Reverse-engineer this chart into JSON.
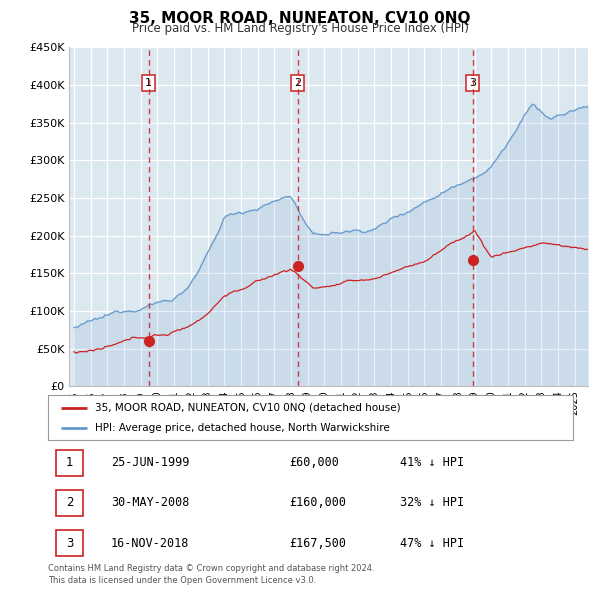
{
  "title": "35, MOOR ROAD, NUNEATON, CV10 0NQ",
  "subtitle": "Price paid vs. HM Land Registry's House Price Index (HPI)",
  "hpi_color": "#6699cc",
  "price_color": "#cc2222",
  "vline_color": "#cc2222",
  "plot_bg": "#dce8f0",
  "ylim": [
    0,
    450000
  ],
  "yticks": [
    0,
    50000,
    100000,
    150000,
    200000,
    250000,
    300000,
    350000,
    400000,
    450000
  ],
  "ytick_labels": [
    "£0",
    "£50K",
    "£100K",
    "£150K",
    "£200K",
    "£250K",
    "£300K",
    "£350K",
    "£400K",
    "£450K"
  ],
  "xlim_start": 1994.7,
  "xlim_end": 2025.8,
  "xtick_years": [
    1995,
    1996,
    1997,
    1998,
    1999,
    2000,
    2001,
    2002,
    2003,
    2004,
    2005,
    2006,
    2007,
    2008,
    2009,
    2010,
    2011,
    2012,
    2013,
    2014,
    2015,
    2016,
    2017,
    2018,
    2019,
    2020,
    2021,
    2022,
    2023,
    2024,
    2025
  ],
  "transactions": [
    {
      "num": 1,
      "year": 1999.48,
      "price": 60000,
      "label": "25-JUN-1999",
      "price_str": "£60,000",
      "pct": "41% ↓ HPI"
    },
    {
      "num": 2,
      "year": 2008.41,
      "price": 160000,
      "label": "30-MAY-2008",
      "price_str": "£160,000",
      "pct": "32% ↓ HPI"
    },
    {
      "num": 3,
      "year": 2018.88,
      "price": 167500,
      "label": "16-NOV-2018",
      "price_str": "£167,500",
      "pct": "47% ↓ HPI"
    }
  ],
  "legend_line1": "35, MOOR ROAD, NUNEATON, CV10 0NQ (detached house)",
  "legend_line2": "HPI: Average price, detached house, North Warwickshire",
  "footnote": "Contains HM Land Registry data © Crown copyright and database right 2024.\nThis data is licensed under the Open Government Licence v3.0."
}
